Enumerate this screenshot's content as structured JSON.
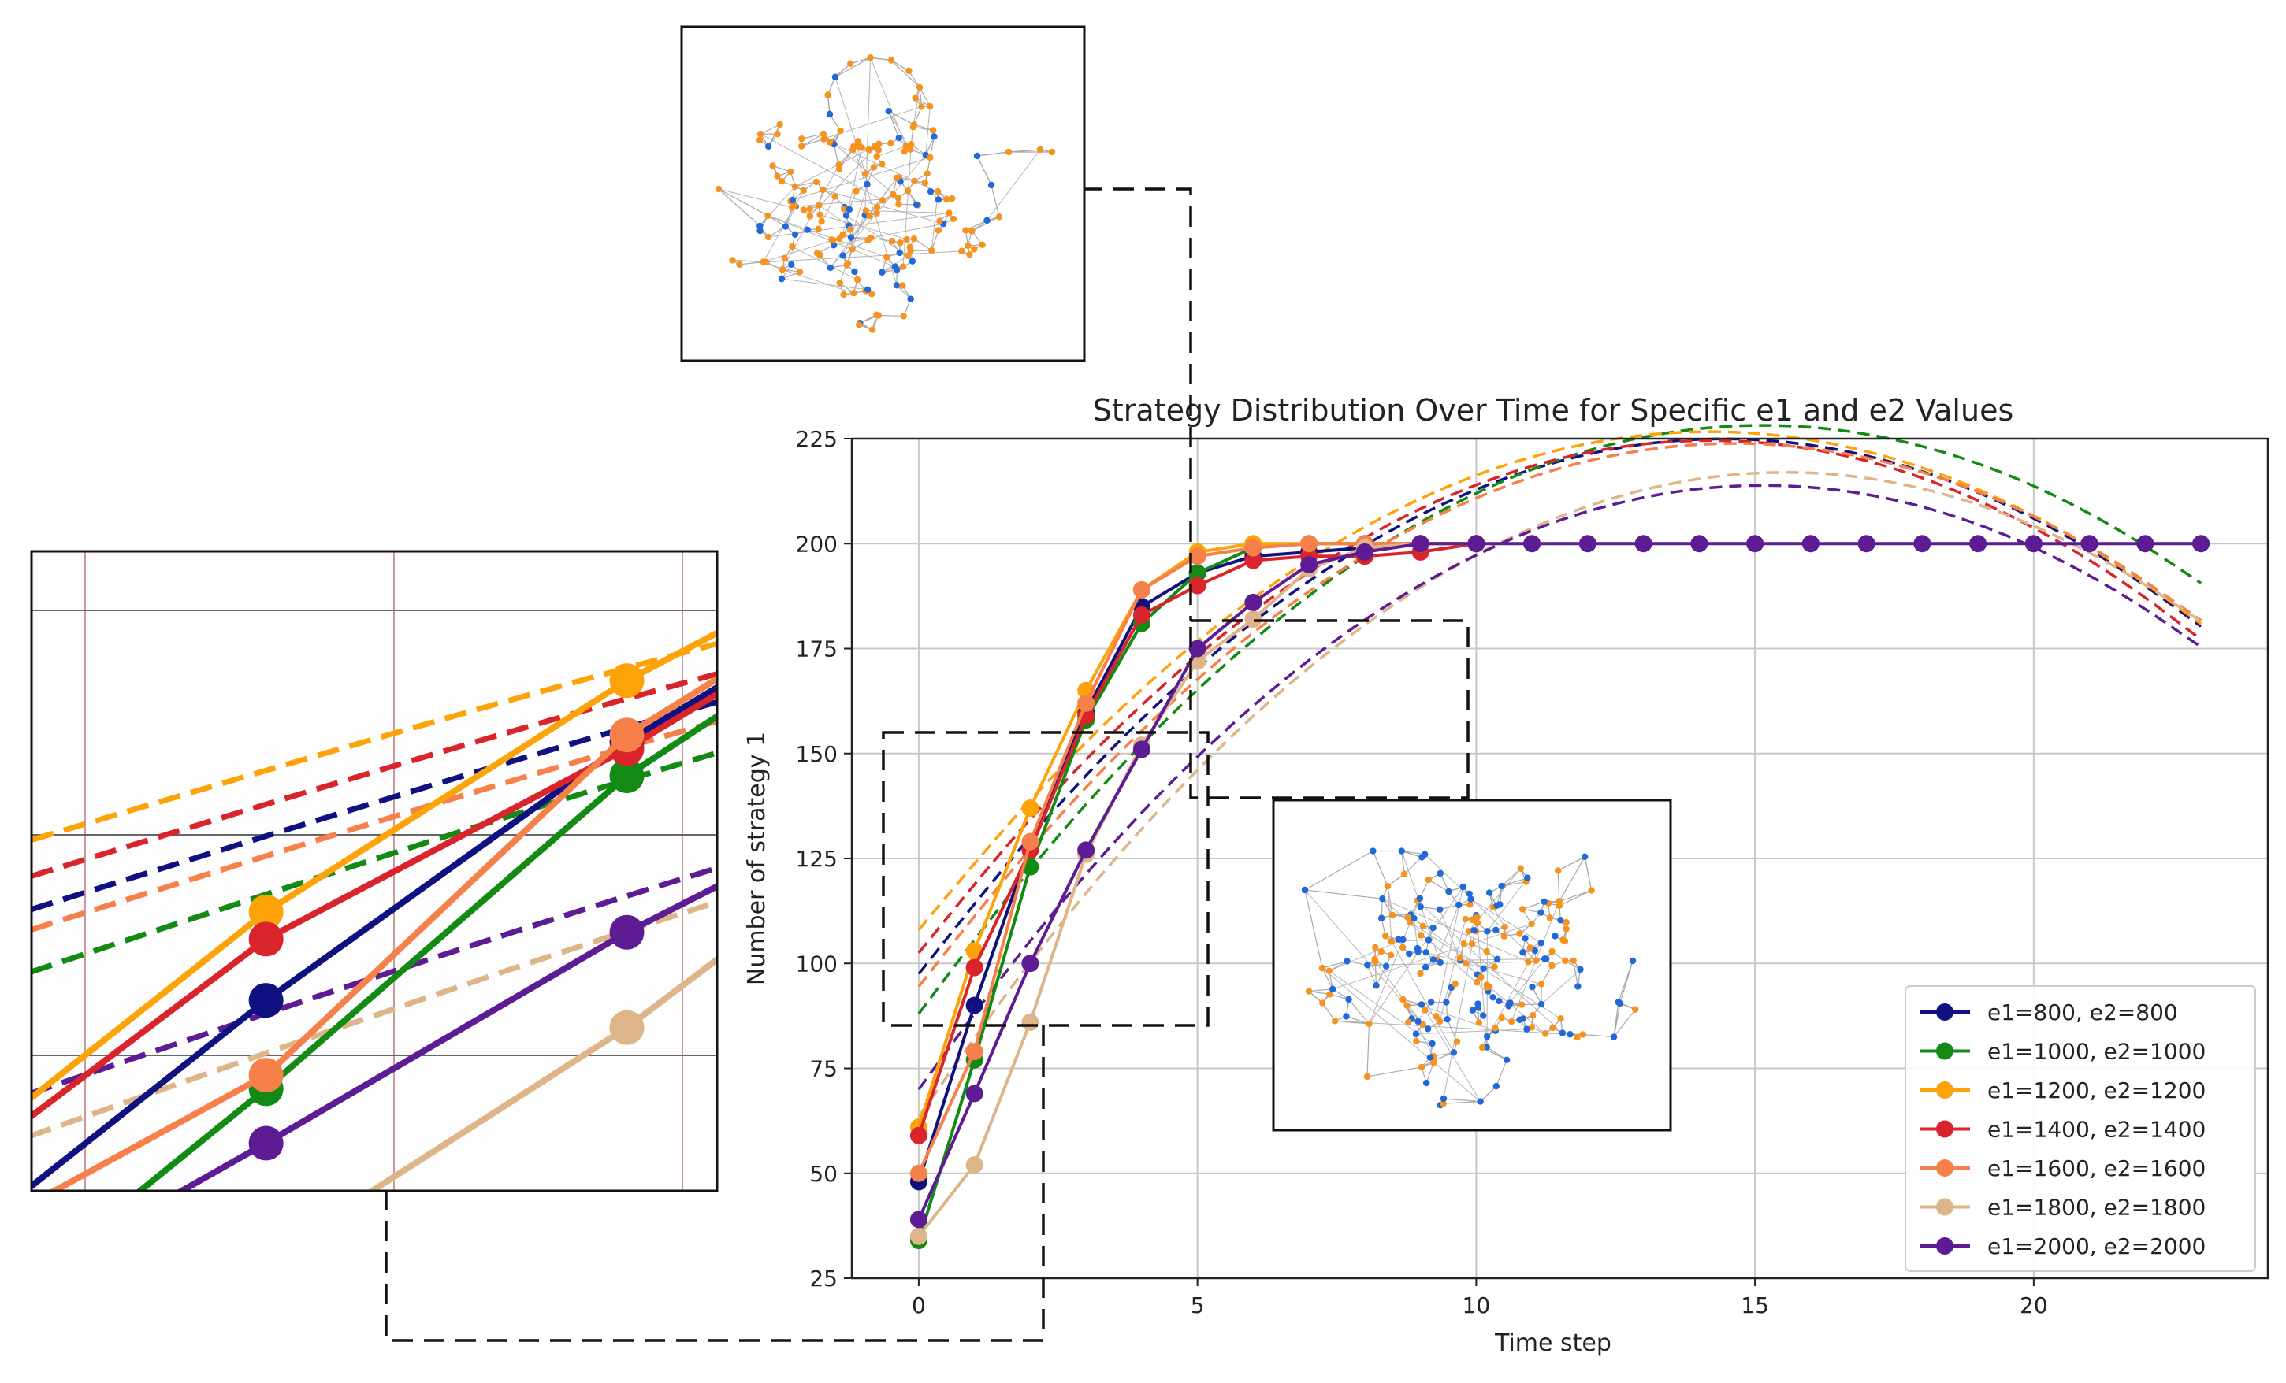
{
  "chart_data": {
    "type": "line",
    "title": "Strategy Distribution Over Time for Specific e1 and e2 Values",
    "xlabel": "Time step",
    "ylabel": "Number of strategy 1",
    "xlim": [
      -1.2,
      24.2
    ],
    "ylim": [
      25,
      225
    ],
    "xticks": [
      0,
      5,
      10,
      15,
      20
    ],
    "xtick_labels": [
      "0",
      "5",
      "10",
      "15",
      "20"
    ],
    "yticks": [
      25,
      50,
      75,
      100,
      125,
      150,
      175,
      200,
      225
    ],
    "ytick_labels": [
      "25",
      "50",
      "75",
      "100",
      "125",
      "150",
      "175",
      "200",
      "225"
    ],
    "grid": true,
    "legend_position": "lower-right",
    "series": [
      {
        "name": "e1=800, e2=800",
        "color": "#0f1180",
        "x": [
          0,
          1,
          2,
          3,
          4,
          5,
          6,
          7,
          8,
          9,
          10
        ],
        "values": [
          48,
          90,
          128,
          160,
          185,
          193,
          197,
          198,
          199,
          200,
          200
        ],
        "fit": [
          97.5,
          119.0,
          138.6,
          156.3,
          171.9,
          185.5,
          197.1,
          206.7,
          214.3,
          219.9,
          223.5,
          225.1,
          224.7,
          222.3,
          217.9,
          211.5,
          203.1,
          192.7,
          180.3
        ]
      },
      {
        "name": "e1=1000, e2=1000",
        "color": "#138a13",
        "x": [
          0,
          1,
          2,
          3,
          4,
          5,
          6,
          7,
          8,
          9,
          10
        ],
        "values": [
          34,
          77,
          123,
          158,
          181,
          193,
          199,
          200,
          200,
          200,
          200
        ],
        "fit": [
          88.0,
          110.7,
          131.4,
          150.1,
          166.8,
          181.5,
          194.2,
          204.9,
          213.6,
          220.3,
          225.0,
          227.7,
          228.4,
          227.1,
          223.8,
          218.5,
          211.2,
          201.9,
          190.6
        ]
      },
      {
        "name": "e1=1200, e2=1200",
        "color": "#fca30a",
        "x": [
          0,
          1,
          2,
          3,
          4,
          5,
          6,
          7,
          8,
          9,
          10
        ],
        "values": [
          61,
          103,
          137,
          165,
          189,
          198,
          200,
          200,
          200,
          200,
          200
        ],
        "fit": [
          108.0,
          128.4,
          146.9,
          163.5,
          178.2,
          190.9,
          201.7,
          210.6,
          217.6,
          222.6,
          225.7,
          226.9,
          226.1,
          223.4,
          218.8,
          212.2,
          203.7,
          193.3,
          180.9
        ]
      },
      {
        "name": "e1=1400, e2=1400",
        "color": "#d8242a",
        "x": [
          0,
          1,
          2,
          3,
          4,
          5,
          6,
          7,
          8,
          9,
          10
        ],
        "values": [
          59,
          99,
          127,
          159,
          183,
          190,
          196,
          197,
          197,
          198,
          200
        ],
        "fit": [
          102.5,
          123.6,
          142.6,
          159.7,
          174.8,
          187.9,
          199.0,
          208.2,
          215.3,
          220.5,
          223.6,
          224.8,
          224.0,
          221.2,
          216.4,
          209.5,
          200.7,
          190.0,
          177.2
        ]
      },
      {
        "name": "e1=1600, e2=1600",
        "color": "#f6804a",
        "x": [
          0,
          1,
          2,
          3,
          4,
          5,
          6,
          7,
          8,
          9,
          10
        ],
        "values": [
          50,
          79,
          129,
          162,
          189,
          197,
          199,
          200,
          200,
          200,
          200
        ],
        "fit": [
          94.5,
          116.1,
          135.8,
          153.5,
          169.2,
          183.0,
          194.7,
          204.5,
          212.3,
          218.2,
          222.0,
          223.9,
          223.8,
          221.7,
          217.7,
          211.7,
          203.7,
          193.7,
          181.7
        ]
      },
      {
        "name": "e1=1800, e2=1800",
        "color": "#deb589",
        "x": [
          0,
          1,
          2,
          3,
          4,
          5,
          6,
          7,
          8,
          9,
          10
        ],
        "values": [
          35,
          52,
          86,
          126,
          152,
          172,
          182,
          194,
          199,
          200,
          200
        ],
        "fit": [
          63.5,
          87.7,
          109.8,
          129.8,
          147.8,
          163.8,
          177.6,
          189.4,
          199.1,
          206.7,
          212.3,
          215.8,
          217.2,
          216.5,
          213.7,
          208.8,
          201.8,
          192.7,
          181.5
        ]
      },
      {
        "name": "e1=2000, e2=2000",
        "color": "#5d1c93",
        "x": [
          0,
          1,
          2,
          3,
          4,
          5,
          6,
          7,
          8,
          9,
          10,
          11,
          12,
          13,
          14,
          15,
          16,
          17,
          18,
          19,
          20,
          21,
          22,
          23
        ],
        "values": [
          39,
          69,
          100,
          127,
          151,
          175,
          186,
          195,
          198,
          200,
          200,
          200,
          200,
          200,
          200,
          200,
          200,
          200,
          200,
          200,
          200,
          200,
          200,
          200
        ],
        "fit": [
          70.0,
          93.3,
          114.6,
          133.8,
          150.9,
          166.0,
          179.0,
          190.0,
          198.9,
          205.8,
          210.6,
          213.4,
          214.1,
          212.8,
          209.4,
          204.0,
          196.5,
          187.0,
          175.4
        ]
      }
    ]
  }
}
